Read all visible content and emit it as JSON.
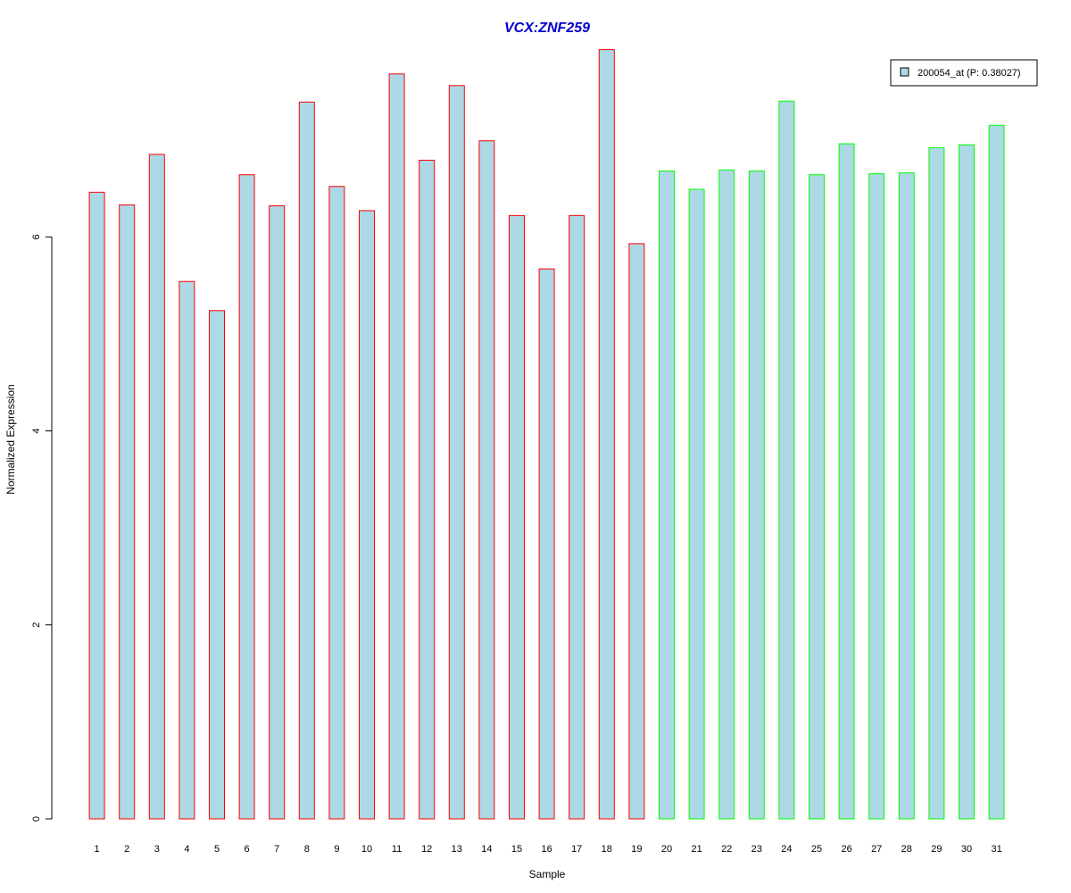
{
  "chart_data": {
    "type": "bar",
    "title": "VCX:ZNF259",
    "title_color": "#0000CC",
    "xlabel": "Sample",
    "ylabel": "Normalized Expression",
    "ylim": [
      0,
      8
    ],
    "yticks": [
      0,
      2,
      4,
      6
    ],
    "grid": false,
    "legend_position": "top-right",
    "categories": [
      "1",
      "2",
      "3",
      "4",
      "5",
      "6",
      "7",
      "8",
      "9",
      "10",
      "11",
      "12",
      "13",
      "14",
      "15",
      "16",
      "17",
      "18",
      "19",
      "20",
      "21",
      "22",
      "23",
      "24",
      "25",
      "26",
      "27",
      "28",
      "29",
      "30",
      "31"
    ],
    "series": [
      {
        "name": "200054_at (P: 0.38027)",
        "fill_color": "#ADD8E6",
        "values": [
          6.46,
          6.33,
          6.85,
          5.54,
          5.24,
          6.64,
          6.32,
          7.39,
          6.52,
          6.27,
          7.68,
          6.79,
          7.56,
          6.99,
          6.22,
          5.67,
          6.22,
          7.93,
          5.93,
          6.68,
          6.49,
          6.69,
          6.68,
          7.4,
          6.64,
          6.96,
          6.65,
          6.66,
          6.92,
          6.95,
          7.15
        ],
        "group_border_colors": [
          {
            "from": 1,
            "to": 19,
            "color": "#FF0000"
          },
          {
            "from": 20,
            "to": 31,
            "color": "#00FF00"
          }
        ]
      }
    ]
  }
}
